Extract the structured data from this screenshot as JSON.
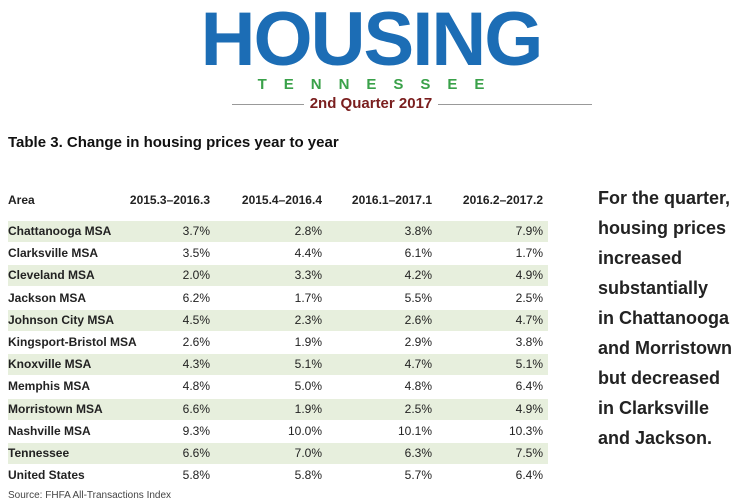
{
  "header": {
    "logo": "HOUSING",
    "state": "TENNESSEE",
    "edition": "2nd Quarter 2017"
  },
  "table": {
    "title": "Table 3. Change in housing prices year to year",
    "columns": [
      "Area",
      "2015.3–2016.3",
      "2015.4–2016.4",
      "2016.1–2017.1",
      "2016.2–2017.2"
    ],
    "rows": [
      [
        "Chattanooga MSA",
        "3.7%",
        "2.8%",
        "3.8%",
        "7.9%"
      ],
      [
        "Clarksville MSA",
        "3.5%",
        "4.4%",
        "6.1%",
        "1.7%"
      ],
      [
        "Cleveland MSA",
        "2.0%",
        "3.3%",
        "4.2%",
        "4.9%"
      ],
      [
        "Jackson MSA",
        "6.2%",
        "1.7%",
        "5.5%",
        "2.5%"
      ],
      [
        "Johnson City MSA",
        "4.5%",
        "2.3%",
        "2.6%",
        "4.7%"
      ],
      [
        "Kingsport-Bristol MSA",
        "2.6%",
        "1.9%",
        "2.9%",
        "3.8%"
      ],
      [
        "Knoxville MSA",
        "4.3%",
        "5.1%",
        "4.7%",
        "5.1%"
      ],
      [
        "Memphis MSA",
        "4.8%",
        "5.0%",
        "4.8%",
        "6.4%"
      ],
      [
        "Morristown MSA",
        "6.6%",
        "1.9%",
        "2.5%",
        "4.9%"
      ],
      [
        "Nashville MSA",
        "9.3%",
        "10.0%",
        "10.1%",
        "10.3%"
      ],
      [
        "Tennessee",
        "6.6%",
        "7.0%",
        "6.3%",
        "7.5%"
      ],
      [
        "United States",
        "5.8%",
        "5.8%",
        "5.7%",
        "6.4%"
      ]
    ],
    "source": "Source: FHFA All-Transactions Index"
  },
  "sidebar": {
    "lines": [
      "For the quarter,",
      "housing prices",
      "increased",
      "substantially",
      "in Chattanooga",
      "and Morristown",
      "but decreased",
      "in Clarksville",
      "and Jackson."
    ]
  }
}
